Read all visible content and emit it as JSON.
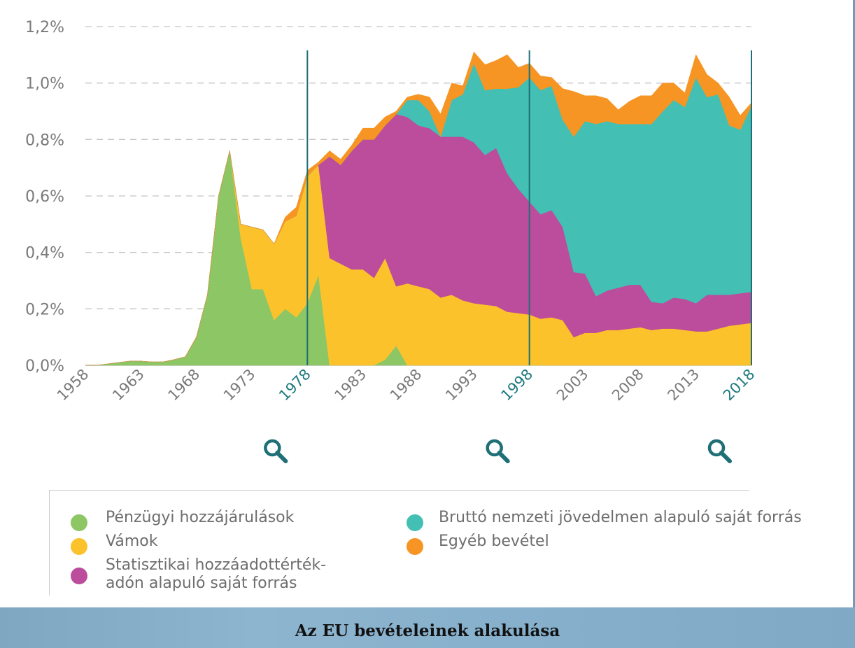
{
  "chart_data": {
    "type": "area",
    "stacked": true,
    "title": "",
    "xlabel": "",
    "ylabel": "",
    "ylim": [
      0,
      1.2
    ],
    "y_ticks": [
      {
        "value": 0.0,
        "label": "0,0%"
      },
      {
        "value": 0.2,
        "label": "0,2%"
      },
      {
        "value": 0.4,
        "label": "0,4%"
      },
      {
        "value": 0.6,
        "label": "0,6%"
      },
      {
        "value": 0.8,
        "label": "0,8%"
      },
      {
        "value": 1.0,
        "label": "1,0%"
      },
      {
        "value": 1.2,
        "label": "1,2%"
      }
    ],
    "x_ticks": [
      {
        "year": 1958,
        "label": "1958",
        "highlight": false
      },
      {
        "year": 1963,
        "label": "1963",
        "highlight": false
      },
      {
        "year": 1968,
        "label": "1968",
        "highlight": false
      },
      {
        "year": 1973,
        "label": "1973",
        "highlight": false
      },
      {
        "year": 1978,
        "label": "1978",
        "highlight": true
      },
      {
        "year": 1983,
        "label": "1983",
        "highlight": false
      },
      {
        "year": 1988,
        "label": "1988",
        "highlight": false
      },
      {
        "year": 1993,
        "label": "1993",
        "highlight": false
      },
      {
        "year": 1998,
        "label": "1998",
        "highlight": true
      },
      {
        "year": 2003,
        "label": "2003",
        "highlight": false
      },
      {
        "year": 2008,
        "label": "2008",
        "highlight": false
      },
      {
        "year": 2013,
        "label": "2013",
        "highlight": false
      },
      {
        "year": 2018,
        "label": "2018",
        "highlight": true
      }
    ],
    "highlight_years": [
      1978,
      1998,
      2018
    ],
    "grid": "horizontal-dashed",
    "legend_position": "bottom",
    "x": [
      1958,
      1959,
      1960,
      1961,
      1962,
      1963,
      1964,
      1965,
      1966,
      1967,
      1968,
      1969,
      1970,
      1971,
      1972,
      1973,
      1974,
      1975,
      1976,
      1977,
      1978,
      1979,
      1980,
      1981,
      1982,
      1983,
      1984,
      1985,
      1986,
      1987,
      1988,
      1989,
      1990,
      1991,
      1992,
      1993,
      1994,
      1995,
      1996,
      1997,
      1998,
      1999,
      2000,
      2001,
      2002,
      2003,
      2004,
      2005,
      2006,
      2007,
      2008,
      2009,
      2010,
      2011,
      2012,
      2013,
      2014,
      2015,
      2016,
      2017,
      2018
    ],
    "series": [
      {
        "name": "Pénzügyi hozzájárulások",
        "color": "#8cc665",
        "values": [
          0,
          0,
          0.005,
          0.01,
          0.015,
          0.015,
          0.012,
          0.012,
          0.02,
          0.03,
          0.1,
          0.25,
          0.6,
          0.76,
          0.45,
          0.27,
          0.27,
          0.16,
          0.2,
          0.17,
          0.22,
          0.32,
          0,
          0,
          0,
          0,
          0,
          0.02,
          0.07,
          0,
          0,
          0,
          0,
          0,
          0,
          0,
          0,
          0,
          0,
          0,
          0,
          0,
          0,
          0,
          0,
          0,
          0,
          0,
          0,
          0,
          0,
          0,
          0,
          0,
          0,
          0,
          0,
          0,
          0,
          0,
          0
        ]
      },
      {
        "name": "Vámok",
        "color": "#fbc22c",
        "values": [
          0,
          0,
          0,
          0,
          0,
          0,
          0,
          0,
          0,
          0,
          0,
          0,
          0,
          0,
          0.05,
          0.22,
          0.21,
          0.27,
          0.31,
          0.36,
          0.45,
          0.39,
          0.38,
          0.36,
          0.34,
          0.34,
          0.31,
          0.36,
          0.21,
          0.29,
          0.28,
          0.27,
          0.24,
          0.25,
          0.23,
          0.22,
          0.215,
          0.21,
          0.19,
          0.185,
          0.18,
          0.165,
          0.17,
          0.16,
          0.1,
          0.115,
          0.115,
          0.125,
          0.125,
          0.13,
          0.135,
          0.125,
          0.13,
          0.13,
          0.125,
          0.12,
          0.12,
          0.13,
          0.14,
          0.145,
          0.15
        ]
      },
      {
        "name": "Statisztikai hozzáadottérték-adón alapuló saját forrás",
        "color": "#bc4c9c",
        "values": [
          0,
          0,
          0,
          0,
          0,
          0,
          0,
          0,
          0,
          0,
          0,
          0,
          0,
          0,
          0,
          0,
          0,
          0,
          0,
          0,
          0,
          0,
          0.36,
          0.35,
          0.42,
          0.46,
          0.49,
          0.47,
          0.61,
          0.59,
          0.57,
          0.57,
          0.57,
          0.56,
          0.58,
          0.57,
          0.53,
          0.56,
          0.49,
          0.44,
          0.4,
          0.37,
          0.38,
          0.33,
          0.23,
          0.21,
          0.13,
          0.14,
          0.15,
          0.155,
          0.15,
          0.1,
          0.09,
          0.11,
          0.11,
          0.1,
          0.13,
          0.12,
          0.11,
          0.11,
          0.11
        ]
      },
      {
        "name": "Bruttó nemzeti jövedelmen alapuló saját forrás",
        "color": "#43bfb4",
        "values": [
          0,
          0,
          0,
          0,
          0,
          0,
          0,
          0,
          0,
          0,
          0,
          0,
          0,
          0,
          0,
          0,
          0,
          0,
          0,
          0,
          0,
          0,
          0,
          0,
          0,
          0,
          0,
          0,
          0,
          0.06,
          0.09,
          0.06,
          0,
          0.13,
          0.15,
          0.28,
          0.23,
          0.21,
          0.3,
          0.36,
          0.44,
          0.44,
          0.44,
          0.38,
          0.48,
          0.54,
          0.61,
          0.6,
          0.58,
          0.57,
          0.57,
          0.63,
          0.68,
          0.7,
          0.68,
          0.8,
          0.7,
          0.71,
          0.6,
          0.58,
          0.66
        ]
      },
      {
        "name": "Egyéb bevétel",
        "color": "#f69524",
        "values": [
          0,
          0,
          0,
          0,
          0,
          0,
          0,
          0,
          0,
          0,
          0,
          0,
          0,
          0,
          0,
          0,
          0,
          0,
          0.015,
          0.03,
          0.02,
          0.01,
          0.02,
          0.02,
          0.02,
          0.04,
          0.04,
          0.03,
          0.01,
          0.01,
          0.02,
          0.05,
          0.08,
          0.06,
          0.03,
          0.04,
          0.09,
          0.1,
          0.12,
          0.07,
          0.05,
          0.05,
          0.03,
          0.11,
          0.16,
          0.09,
          0.1,
          0.08,
          0.05,
          0.08,
          0.1,
          0.1,
          0.1,
          0.06,
          0.05,
          0.08,
          0.08,
          0.04,
          0.1,
          0.05,
          0.01
        ]
      }
    ]
  },
  "legend": {
    "items": [
      {
        "label": "Pénzügyi hozzájárulások",
        "color": "#8cc665"
      },
      {
        "label": "Vámok",
        "color": "#fbc22c"
      },
      {
        "label": "Statisztikai hozzáadottérték-adón alapuló saját forrás",
        "color": "#bc4c9c"
      },
      {
        "label": "Bruttó nemzeti jövedelmen alapuló saját forrás",
        "color": "#43bfb4"
      },
      {
        "label": "Egyéb bevétel",
        "color": "#f69524"
      }
    ]
  },
  "icons": {
    "highlight_marker": "magnifier-icon"
  },
  "footer": {
    "title": "Az EU bevételeinek alakulása"
  }
}
